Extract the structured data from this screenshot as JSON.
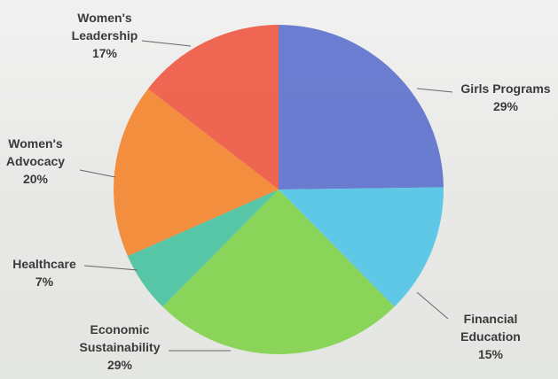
{
  "chart_data": {
    "type": "pie",
    "categories": [
      "Girls Programs",
      "Financial\nEducation",
      "Economic\nSustainability",
      "Healthcare",
      "Women's\nAdvocacy",
      "Women's\nLeadership"
    ],
    "values": [
      29,
      15,
      29,
      7,
      20,
      17
    ],
    "value_labels": [
      "29%",
      "15%",
      "29%",
      "7%",
      "20%",
      "17%"
    ],
    "colors": [
      "#5c70cc",
      "#4fc4e6",
      "#7fd14a",
      "#47c2a0",
      "#f4842c",
      "#ee5641"
    ]
  }
}
